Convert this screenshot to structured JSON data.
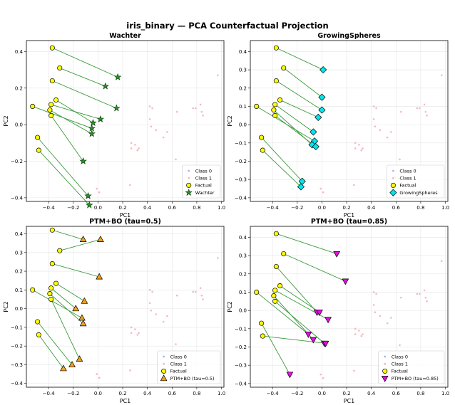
{
  "suptitle": "iris_binary — PCA Counterfactual Projection",
  "colors": {
    "class0": "#aab4ee",
    "class1": "#f4b8c0",
    "factual": "#ffff00",
    "link": "#3a9a3a",
    "wachter": "#2e8b2e",
    "growing": "#00e5ee",
    "ptm05": "#f0a020",
    "ptm085": "#e010e0"
  },
  "chart_data": [
    {
      "type": "scatter",
      "title": "Wachter",
      "xlabel": "PC1",
      "ylabel": "PC2",
      "xlim": [
        -0.58,
        1.02
      ],
      "ylim": [
        -0.42,
        0.46
      ],
      "xticks": [
        -0.4,
        -0.2,
        0.0,
        0.2,
        0.4,
        0.6,
        0.8,
        1.0
      ],
      "yticks": [
        -0.4,
        -0.2,
        0.0,
        0.2,
        0.4
      ],
      "grid": true,
      "legend_position": "lower-right",
      "legend": [
        "Class 0",
        "Class 1",
        "Factual",
        "Wachter"
      ],
      "cf_marker": "star",
      "cf_color_key": "wachter",
      "counterfactuals": [
        [
          0.16,
          0.26
        ],
        [
          0.06,
          0.21
        ],
        [
          0.15,
          0.09
        ],
        [
          -0.04,
          0.01
        ],
        [
          0.02,
          0.03
        ],
        [
          -0.05,
          -0.02
        ],
        [
          -0.05,
          -0.05
        ],
        [
          -0.12,
          -0.2
        ],
        [
          -0.08,
          -0.39
        ],
        [
          -0.07,
          -0.44
        ]
      ]
    },
    {
      "type": "scatter",
      "title": "GrowingSpheres",
      "xlabel": "PC1",
      "ylabel": "PC2",
      "xlim": [
        -0.58,
        1.02
      ],
      "ylim": [
        -0.42,
        0.46
      ],
      "xticks": [
        -0.4,
        -0.2,
        0.0,
        0.2,
        0.4,
        0.6,
        0.8,
        1.0
      ],
      "yticks": [
        -0.4,
        -0.3,
        -0.2,
        -0.1,
        0.0,
        0.1,
        0.2,
        0.3,
        0.4
      ],
      "grid": true,
      "legend_position": "lower-right",
      "legend": [
        "Class 0",
        "Class 1",
        "Factual",
        "GrowingSpheres"
      ],
      "cf_marker": "diamond",
      "cf_color_key": "growing",
      "counterfactuals": [
        [
          0.01,
          0.3
        ],
        [
          0.0,
          0.15
        ],
        [
          0.0,
          0.08
        ],
        [
          -0.03,
          0.04
        ],
        [
          -0.07,
          -0.04
        ],
        [
          -0.06,
          -0.09
        ],
        [
          -0.08,
          -0.11
        ],
        [
          -0.05,
          -0.12
        ],
        [
          -0.16,
          -0.31
        ],
        [
          -0.17,
          -0.34
        ]
      ]
    },
    {
      "type": "scatter",
      "title": "PTM+BO (tau=0.5)",
      "xlabel": "PC1",
      "ylabel": "PC2",
      "xlim": [
        -0.58,
        1.02
      ],
      "ylim": [
        -0.42,
        0.44
      ],
      "xticks": [
        -0.4,
        -0.2,
        0.0,
        0.2,
        0.4,
        0.6,
        0.8,
        1.0
      ],
      "yticks": [
        -0.4,
        -0.3,
        -0.2,
        -0.1,
        0.0,
        0.1,
        0.2,
        0.3,
        0.4
      ],
      "grid": true,
      "legend_position": "lower-right",
      "legend": [
        "Class 0",
        "Class 1",
        "Factual",
        "PTM+BO (tau=0.5)"
      ],
      "cf_marker": "triangle-up",
      "cf_color_key": "ptm05",
      "counterfactuals": [
        [
          -0.12,
          0.37
        ],
        [
          0.02,
          0.37
        ],
        [
          0.01,
          0.17
        ],
        [
          -0.11,
          0.04
        ],
        [
          -0.18,
          0.0
        ],
        [
          -0.13,
          -0.05
        ],
        [
          -0.12,
          -0.08
        ],
        [
          -0.15,
          -0.27
        ],
        [
          -0.21,
          -0.3
        ],
        [
          -0.28,
          -0.32
        ]
      ]
    },
    {
      "type": "scatter",
      "title": "PTM+BO (tau=0.85)",
      "xlabel": "PC1",
      "ylabel": "PC2",
      "xlim": [
        -0.58,
        1.02
      ],
      "ylim": [
        -0.42,
        0.46
      ],
      "xticks": [
        -0.4,
        -0.2,
        0.0,
        0.2,
        0.4,
        0.6,
        0.8,
        1.0
      ],
      "yticks": [
        -0.4,
        -0.3,
        -0.2,
        -0.1,
        0.0,
        0.1,
        0.2,
        0.3,
        0.4
      ],
      "grid": true,
      "legend_position": "lower-right",
      "legend": [
        "Class 0",
        "Class 1",
        "Factual",
        "PTM+BO (tau=0.85)"
      ],
      "cf_marker": "triangle-down",
      "cf_color_key": "ptm085",
      "counterfactuals": [
        [
          0.12,
          0.31
        ],
        [
          0.19,
          0.16
        ],
        [
          -0.04,
          -0.01
        ],
        [
          -0.02,
          -0.01
        ],
        [
          0.05,
          -0.05
        ],
        [
          -0.11,
          -0.13
        ],
        [
          -0.07,
          -0.16
        ],
        [
          0.02,
          -0.18
        ],
        [
          -0.26,
          -0.35
        ],
        [
          0.03,
          -0.18
        ]
      ]
    }
  ],
  "factuals": [
    [
      -0.37,
      0.42
    ],
    [
      -0.31,
      0.31
    ],
    [
      -0.37,
      0.24
    ],
    [
      -0.34,
      0.135
    ],
    [
      -0.38,
      0.11
    ],
    [
      -0.53,
      0.1
    ],
    [
      -0.39,
      0.08
    ],
    [
      -0.38,
      0.05
    ],
    [
      -0.49,
      -0.07
    ],
    [
      -0.48,
      -0.14
    ]
  ],
  "class1_points": [
    [
      0.97,
      0.27
    ],
    [
      0.42,
      0.1
    ],
    [
      0.44,
      0.09
    ],
    [
      0.42,
      0.03
    ],
    [
      0.43,
      -0.01
    ],
    [
      0.77,
      0.09
    ],
    [
      0.79,
      0.09
    ],
    [
      0.83,
      0.11
    ],
    [
      0.84,
      0.07
    ],
    [
      0.85,
      0.05
    ],
    [
      0.64,
      0.07
    ],
    [
      0.56,
      -0.04
    ],
    [
      0.53,
      -0.07
    ],
    [
      0.47,
      -0.03
    ],
    [
      0.27,
      -0.1
    ],
    [
      0.27,
      -0.13
    ],
    [
      0.3,
      -0.11
    ],
    [
      0.32,
      -0.14
    ],
    [
      0.33,
      -0.13
    ],
    [
      0.63,
      -0.19
    ],
    [
      0.26,
      -0.33
    ],
    [
      -0.01,
      -0.35
    ],
    [
      0.01,
      -0.37
    ]
  ]
}
